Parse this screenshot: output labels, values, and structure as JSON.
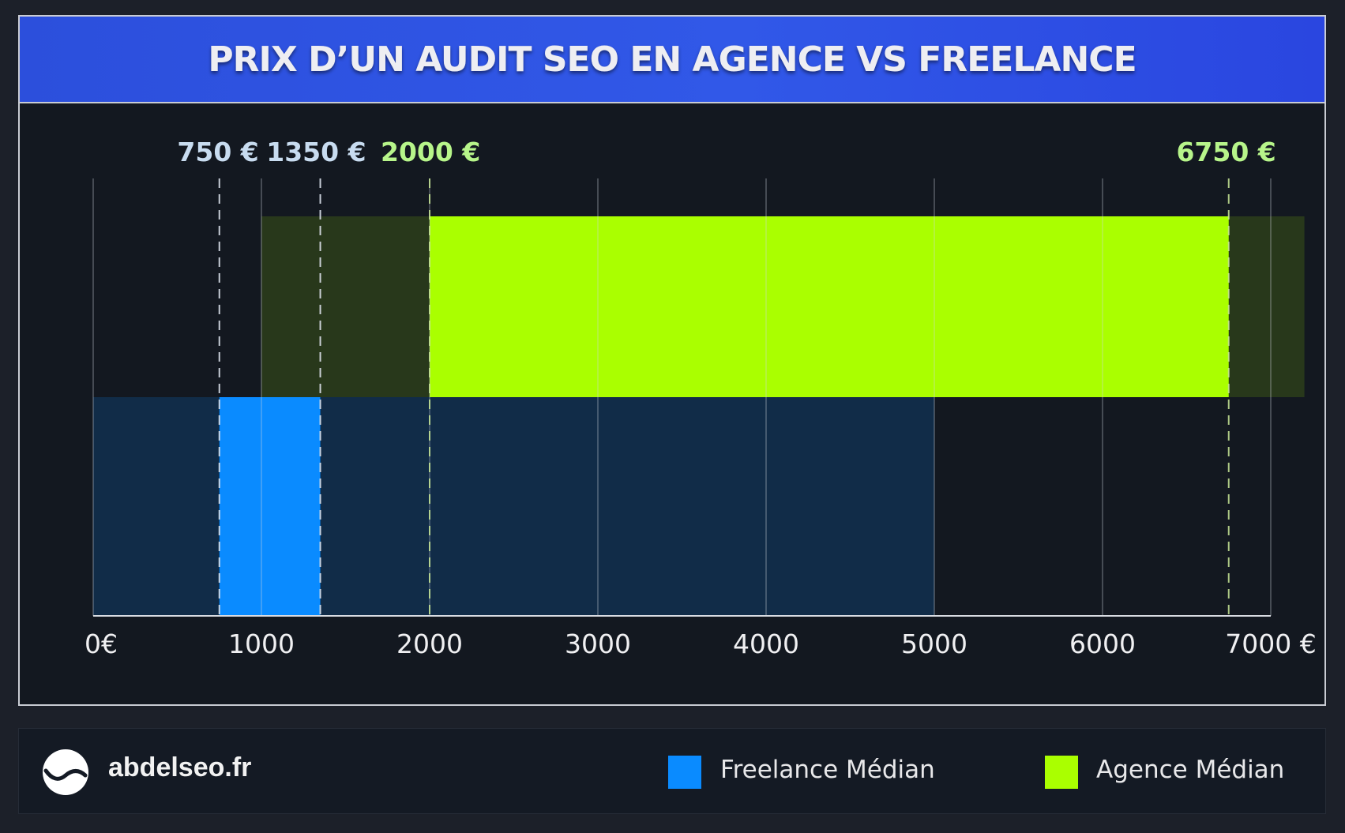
{
  "title": "PRIX D’UN AUDIT SEO EN AGENCE VS FREELANCE",
  "site": "abdelseo.fr",
  "colors": {
    "freelance": "#0a8bff",
    "agence": "#aaff00",
    "freelance_label": "#c8dcf0",
    "agence_label": "#b7f58a"
  },
  "chart_data": {
    "type": "bar",
    "orientation": "horizontal-range",
    "xlim": [
      0,
      7000
    ],
    "x_ticks": [
      0,
      1000,
      2000,
      3000,
      4000,
      5000,
      6000,
      7000
    ],
    "x_tick_labels": [
      "0€",
      "1000",
      "2000",
      "3000",
      "4000",
      "5000",
      "6000",
      "7000 €"
    ],
    "grid": true,
    "legend_position": "bottom-right",
    "series": [
      {
        "name": "Agence Médian",
        "range_full": [
          1000,
          7200
        ],
        "median_range": [
          2000,
          6750
        ],
        "low_label": "2000 €",
        "high_label": "6750 €"
      },
      {
        "name": "Freelance Médian",
        "range_full": [
          0,
          5000
        ],
        "median_range": [
          750,
          1350
        ],
        "low_label": "750 €",
        "high_label": "1350 €"
      }
    ]
  }
}
